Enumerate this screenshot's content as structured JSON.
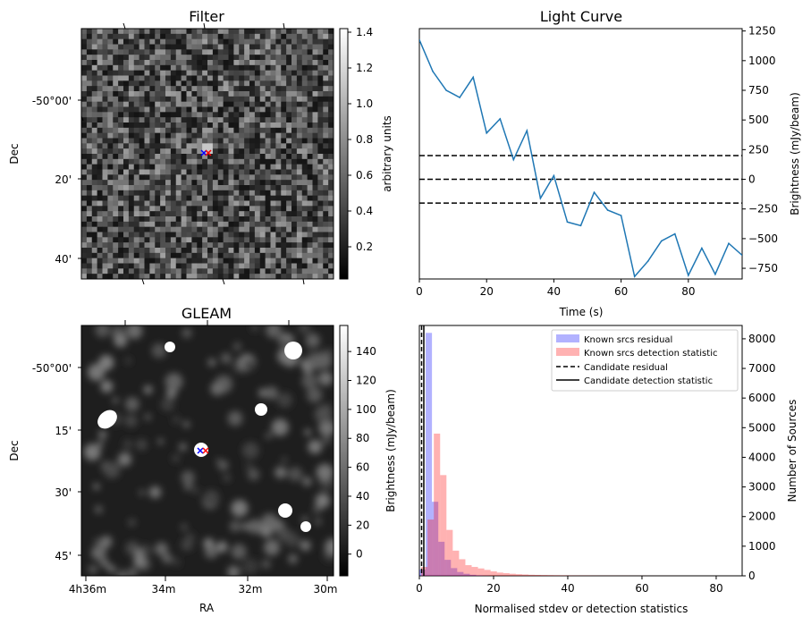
{
  "colors": {
    "line": "#1f77b4",
    "known_residual": "#0000ff",
    "known_detection": "#ff0000",
    "candidate_marker_blue": "#0000ff",
    "candidate_marker_red": "#ff0000"
  },
  "chart_data": [
    {
      "type": "heatmap",
      "title": "Filter",
      "xlabel": "",
      "ylabel": "Dec",
      "ytick_labels": [
        "-50°00'",
        "20'",
        "40'"
      ],
      "colormap": "gray",
      "colorbar": {
        "label": "arbitrary units",
        "range": [
          0.02,
          1.42
        ],
        "tick_values": [
          0.2,
          0.4,
          0.6,
          0.8,
          1.0,
          1.2,
          1.4
        ],
        "tick_labels": [
          "0.2",
          "0.4",
          "0.6",
          "0.8",
          "1.0",
          "1.2",
          "1.4"
        ]
      },
      "markers": [
        {
          "symbol": "x",
          "color": "blue"
        },
        {
          "symbol": "x",
          "color": "red"
        }
      ]
    },
    {
      "type": "line",
      "title": "Light Curve",
      "xlabel": "Time (s)",
      "ylabel": "Brightness (mJy/beam)",
      "xlim": [
        0,
        96
      ],
      "ylim": [
        -840,
        1270
      ],
      "xticks": [
        0,
        20,
        40,
        60,
        80
      ],
      "yticks": [
        -750,
        -500,
        -250,
        0,
        250,
        500,
        750,
        1000,
        1250
      ],
      "grid": false,
      "x": [
        0,
        4,
        8,
        12,
        16,
        20,
        24,
        28,
        32,
        36,
        40,
        44,
        48,
        52,
        56,
        60,
        64,
        68,
        72,
        76,
        80,
        84,
        88,
        92,
        96
      ],
      "series": [
        {
          "values": [
            1175,
            910,
            750,
            690,
            860,
            390,
            510,
            165,
            410,
            -160,
            30,
            -360,
            -390,
            -110,
            -260,
            -305,
            -820,
            -690,
            -520,
            -460,
            -810,
            -580,
            -800,
            -540,
            -640
          ]
        }
      ],
      "hlines": [
        -200,
        0,
        200
      ]
    },
    {
      "type": "heatmap",
      "title": "GLEAM",
      "xlabel": "RA",
      "ylabel": "Dec",
      "xtick_labels": [
        "4h36m",
        "34m",
        "32m",
        "30m"
      ],
      "ytick_labels": [
        "-50°00'",
        "15'",
        "30'",
        "45'"
      ],
      "colormap": "gray",
      "colorbar": {
        "label": "Brightness (mJy/beam)",
        "range": [
          -15,
          158
        ],
        "tick_values": [
          0,
          20,
          40,
          60,
          80,
          100,
          120,
          140
        ],
        "tick_labels": [
          "0",
          "20",
          "40",
          "60",
          "80",
          "100",
          "120",
          "140"
        ]
      },
      "markers": [
        {
          "symbol": "x",
          "color": "blue"
        },
        {
          "symbol": "x",
          "color": "red"
        }
      ]
    },
    {
      "type": "bar",
      "subtype": "histogram",
      "xlabel": "Normalised stdev or detection statistics",
      "ylabel": "Number of Sources",
      "xlim": [
        0,
        87
      ],
      "ylim": [
        0,
        8450
      ],
      "xticks": [
        0,
        20,
        40,
        60,
        80
      ],
      "yticks": [
        0,
        1000,
        2000,
        3000,
        4000,
        5000,
        6000,
        7000,
        8000
      ],
      "bin_width": 1.7,
      "legend_position": "top-right",
      "legend": [
        "Known srcs residual",
        "Known srcs detection statistic",
        "Candidate residual",
        "Candidate detection statistic"
      ],
      "series": [
        {
          "name": "Known srcs residual",
          "bin_start": 0,
          "values": [
            210,
            8200,
            2500,
            1150,
            540,
            260,
            130,
            70,
            35,
            15,
            8
          ]
        },
        {
          "name": "Known srcs detection statistic",
          "bin_start": 0.5,
          "values": [
            300,
            1900,
            4800,
            3400,
            1550,
            850,
            560,
            360,
            300,
            250,
            200,
            150,
            110,
            90,
            70,
            55,
            45,
            35,
            30,
            25,
            22,
            18,
            15,
            12,
            10,
            9,
            8,
            7,
            6,
            5,
            5,
            4,
            4,
            3,
            3,
            3,
            2,
            2,
            2,
            2,
            2,
            1,
            1,
            1,
            1,
            1,
            1,
            1,
            1,
            1
          ]
        }
      ],
      "vlines": [
        {
          "name": "Candidate residual",
          "x": 0.6
        },
        {
          "name": "Candidate detection statistic",
          "x": 1.2
        }
      ]
    }
  ]
}
